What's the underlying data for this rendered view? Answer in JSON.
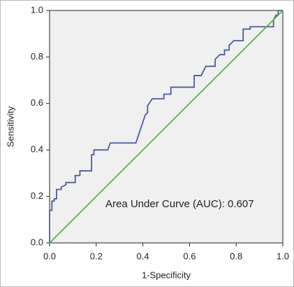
{
  "chart_data": {
    "type": "line",
    "xlabel": "1-Specificity",
    "ylabel": "Sensitivity",
    "annotation": "Area Under Curve (AUC): 0.607",
    "xlim": [
      0,
      1
    ],
    "ylim": [
      0,
      1
    ],
    "xticks": [
      {
        "value": 0,
        "label": "0.0"
      },
      0.2,
      0.4,
      0.6,
      0.8,
      {
        "value": 1,
        "label": "1.0"
      }
    ],
    "yticks": [
      {
        "value": 0,
        "label": "0.0"
      },
      0.2,
      0.4,
      0.6,
      0.8,
      {
        "value": 1,
        "label": "1.0"
      }
    ],
    "series": [
      {
        "color": "#4e5c9c",
        "x": [
          0,
          0,
          0.01,
          0.01,
          0.02,
          0.02,
          0.03,
          0.03,
          0.05,
          0.05,
          0.07,
          0.07,
          0.11,
          0.11,
          0.13,
          0.13,
          0.18,
          0.18,
          0.19,
          0.19,
          0.25,
          0.26,
          0.37,
          0.41,
          0.42,
          0.42,
          0.44,
          0.49,
          0.49,
          0.52,
          0.52,
          0.62,
          0.62,
          0.65,
          0.67,
          0.71,
          0.71,
          0.73,
          0.75,
          0.75,
          0.77,
          0.77,
          0.79,
          0.83,
          0.83,
          0.86,
          0.86,
          0.96,
          0.96,
          0.97,
          0.98,
          0.98,
          1
        ],
        "values": [
          0,
          0.14,
          0.14,
          0.18,
          0.18,
          0.19,
          0.19,
          0.23,
          0.23,
          0.24,
          0.25,
          0.26,
          0.26,
          0.29,
          0.29,
          0.31,
          0.31,
          0.38,
          0.38,
          0.4,
          0.4,
          0.43,
          0.43,
          0.55,
          0.56,
          0.59,
          0.62,
          0.62,
          0.64,
          0.64,
          0.67,
          0.67,
          0.72,
          0.72,
          0.76,
          0.76,
          0.79,
          0.81,
          0.81,
          0.83,
          0.83,
          0.85,
          0.87,
          0.87,
          0.92,
          0.92,
          0.93,
          0.93,
          0.96,
          0.98,
          0.98,
          1,
          1
        ]
      },
      {
        "color": "#5cb04a",
        "x": [
          0,
          1
        ],
        "values": [
          0,
          1
        ]
      }
    ]
  }
}
